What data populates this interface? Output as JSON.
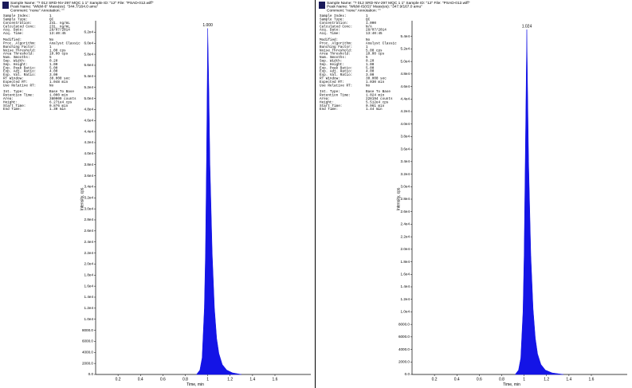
{
  "chart_data": [
    {
      "type": "area",
      "peak_label": "1.000",
      "color": "#1414e6",
      "x_label": "Time, min",
      "y_label": "Intensity, cps",
      "header": [
        "Sample Name: \"? 012 SRD-NV-297 MQC 1 1\"   Sample ID: \"12\"   File: \"PSAD-012.wiff\"",
        "Peak Name: \"Wldxl-6\"   Mass(es): \"344.7/164.0 amu\"",
        "Comment: \"none\"   Annotation: \"\""
      ],
      "params": [
        [
          "Sample Index:",
          "1"
        ],
        [
          "Sample Type:",
          "QC"
        ],
        [
          "Concentration:",
          "241.  ng/mL"
        ],
        [
          "Calculated Conc:",
          "231.  ng/mL"
        ],
        [
          "Acq. Date:",
          "28/07/2014"
        ],
        [
          "Acq. Time:",
          "13:40:45"
        ],
        [
          "Modified:",
          "No"
        ],
        [
          "Proc. Algorithm:",
          "Analyst Classic"
        ],
        [
          "Bunching Factor:",
          "1"
        ],
        [
          "Noise Threshold:",
          "1.00  cps"
        ],
        [
          "Area Threshold:",
          "10.00  cps"
        ],
        [
          "Num. Smooths:",
          "5"
        ],
        [
          "Sep. Width:",
          "0.20"
        ],
        [
          "Sep. Height:",
          "1.00"
        ],
        [
          "Exp. Peak Ratio:",
          "5.00"
        ],
        [
          "Exp. Adj. Ratio:",
          "4.00"
        ],
        [
          "Exp. Val. Ratio:",
          "3.00"
        ],
        [
          "RT Window:",
          "30.000  sec"
        ],
        [
          "Expected RT:",
          "1.048  min"
        ],
        [
          "Use Relative RT:",
          "No"
        ],
        [
          "Int. Type:",
          "Base To Base"
        ],
        [
          "Retention Time:",
          "1.000  min"
        ],
        [
          "Area:",
          "380009  counts"
        ],
        [
          "Height:",
          "6.271e4  cps"
        ],
        [
          "Start Time:",
          "0.876  min"
        ],
        [
          "End Time:",
          "1.30  min"
        ]
      ],
      "x": [
        0.9,
        0.93,
        0.95,
        0.97,
        0.98,
        0.99,
        1.0,
        1.01,
        1.02,
        1.04,
        1.06,
        1.08,
        1.1,
        1.13,
        1.17,
        1.22,
        1.3
      ],
      "values": [
        0,
        800,
        3000,
        12000,
        22000,
        40000,
        62700,
        52000,
        38000,
        22000,
        12000,
        6500,
        3800,
        1800,
        800,
        300,
        0
      ],
      "xlim": [
        0,
        1.92
      ],
      "xticks": [
        0.2,
        0.4,
        0.6,
        0.8,
        1.0,
        1.2,
        1.4,
        1.6
      ],
      "ylim": [
        0,
        63500
      ],
      "yticks": [
        {
          "value": 0,
          "label": "0.0"
        },
        {
          "value": 2000,
          "label": "2000.0"
        },
        {
          "value": 4000,
          "label": "4000.0"
        },
        {
          "value": 6000,
          "label": "6000.0"
        },
        {
          "value": 8000,
          "label": "8000.0"
        },
        {
          "value": 10000,
          "label": "1.0e4"
        },
        {
          "value": 12000,
          "label": "1.2e4"
        },
        {
          "value": 14000,
          "label": "1.4e4"
        },
        {
          "value": 16000,
          "label": "1.6e4"
        },
        {
          "value": 18000,
          "label": "1.8e4"
        },
        {
          "value": 20000,
          "label": "2.0e4"
        },
        {
          "value": 22000,
          "label": "2.2e4"
        },
        {
          "value": 24000,
          "label": "2.4e4"
        },
        {
          "value": 26000,
          "label": "2.6e4"
        },
        {
          "value": 28000,
          "label": "2.8e4"
        },
        {
          "value": 30000,
          "label": "3.0e4"
        },
        {
          "value": 32000,
          "label": "3.2e4"
        },
        {
          "value": 34000,
          "label": "3.4e4"
        },
        {
          "value": 36000,
          "label": "3.6e4"
        },
        {
          "value": 38000,
          "label": "3.8e4"
        },
        {
          "value": 40000,
          "label": "4.0e4"
        },
        {
          "value": 42000,
          "label": "4.2e4"
        },
        {
          "value": 44000,
          "label": "4.4e4"
        },
        {
          "value": 46000,
          "label": "4.6e4"
        },
        {
          "value": 48000,
          "label": "4.8e4"
        },
        {
          "value": 50000,
          "label": "5.0e4"
        },
        {
          "value": 52000,
          "label": "5.2e4"
        },
        {
          "value": 54000,
          "label": "5.4e4"
        },
        {
          "value": 56000,
          "label": "5.6e4"
        },
        {
          "value": 58000,
          "label": "5.8e4"
        },
        {
          "value": 60000,
          "label": "6.0e4"
        },
        {
          "value": 62000,
          "label": "6.2e4"
        }
      ]
    },
    {
      "type": "area",
      "peak_label": "1.024",
      "color": "#1414e6",
      "x_label": "Time, min",
      "y_label": "Intensity, cps",
      "header": [
        "Sample Name: \"? 012 SRD-NV-297 MQC 1 1\"   Sample ID: \"12\"   File: \"PSAD-012.wiff\"",
        "Peak Name: \"Wldxl-IS(IS)\"   Mass(es): \"347.9/167.0 amu\"",
        "Comment: \"none\"   Annotation: \"\""
      ],
      "params": [
        [
          "Sample Index:",
          "1"
        ],
        [
          "Sample Type:",
          "QC"
        ],
        [
          "Concentration:",
          "1.000"
        ],
        [
          "Calculated Conc:",
          "N/A"
        ],
        [
          "Acq. Date:",
          "28/07/2014"
        ],
        [
          "Acq. Time:",
          "13:40:45"
        ],
        [
          "Modified:",
          "No"
        ],
        [
          "Proc. Algorithm:",
          "Analyst Classic"
        ],
        [
          "Bunching Factor:",
          "1"
        ],
        [
          "Noise Threshold:",
          "5.00  cps"
        ],
        [
          "Area Threshold:",
          "10.00  cps"
        ],
        [
          "Num. Smooths:",
          "5"
        ],
        [
          "Sep. Width:",
          "0.20"
        ],
        [
          "Sep. Height:",
          "1.00"
        ],
        [
          "Exp. Peak Ratio:",
          "5.00"
        ],
        [
          "Exp. Adj. Ratio:",
          "4.00"
        ],
        [
          "Exp. Val. Ratio:",
          "3.00"
        ],
        [
          "RT Window:",
          "30.000  sec"
        ],
        [
          "Expected RT:",
          "1.030  min"
        ],
        [
          "Use Relative RT:",
          "No"
        ],
        [
          "Int. Type:",
          "Base To Base"
        ],
        [
          "Retention Time:",
          "1.024  min"
        ],
        [
          "Area:",
          "228194  counts"
        ],
        [
          "Height:",
          "5.512e4  cps"
        ],
        [
          "Start Time:",
          "0.961  min"
        ],
        [
          "End Time:",
          "1.44  min"
        ]
      ],
      "x": [
        0.92,
        0.95,
        0.97,
        0.99,
        1.0,
        1.01,
        1.024,
        1.03,
        1.04,
        1.06,
        1.08,
        1.1,
        1.12,
        1.15,
        1.19,
        1.25,
        1.35
      ],
      "values": [
        0,
        700,
        2600,
        10000,
        19000,
        34000,
        55100,
        47000,
        34000,
        19000,
        10500,
        5800,
        3300,
        1600,
        700,
        250,
        0
      ],
      "xlim": [
        0,
        1.92
      ],
      "xticks": [
        0.2,
        0.4,
        0.6,
        0.8,
        1.0,
        1.2,
        1.4,
        1.6
      ],
      "ylim": [
        0,
        56000
      ],
      "yticks": [
        {
          "value": 0,
          "label": "0.0"
        },
        {
          "value": 2000,
          "label": "2000.0"
        },
        {
          "value": 4000,
          "label": "4000.0"
        },
        {
          "value": 6000,
          "label": "6000.0"
        },
        {
          "value": 8000,
          "label": "8000.0"
        },
        {
          "value": 10000,
          "label": "1.0e4"
        },
        {
          "value": 12000,
          "label": "1.2e4"
        },
        {
          "value": 14000,
          "label": "1.4e4"
        },
        {
          "value": 16000,
          "label": "1.6e4"
        },
        {
          "value": 18000,
          "label": "1.8e4"
        },
        {
          "value": 20000,
          "label": "2.0e4"
        },
        {
          "value": 22000,
          "label": "2.2e4"
        },
        {
          "value": 24000,
          "label": "2.4e4"
        },
        {
          "value": 26000,
          "label": "2.6e4"
        },
        {
          "value": 28000,
          "label": "2.8e4"
        },
        {
          "value": 30000,
          "label": "3.0e4"
        },
        {
          "value": 32000,
          "label": "3.2e4"
        },
        {
          "value": 34000,
          "label": "3.4e4"
        },
        {
          "value": 36000,
          "label": "3.6e4"
        },
        {
          "value": 38000,
          "label": "3.8e4"
        },
        {
          "value": 40000,
          "label": "4.0e4"
        },
        {
          "value": 42000,
          "label": "4.2e4"
        },
        {
          "value": 44000,
          "label": "4.4e4"
        },
        {
          "value": 46000,
          "label": "4.6e4"
        },
        {
          "value": 48000,
          "label": "4.8e4"
        },
        {
          "value": 50000,
          "label": "5.0e4"
        },
        {
          "value": 52000,
          "label": "5.2e4"
        },
        {
          "value": 54000,
          "label": "5.4e4"
        }
      ]
    }
  ]
}
